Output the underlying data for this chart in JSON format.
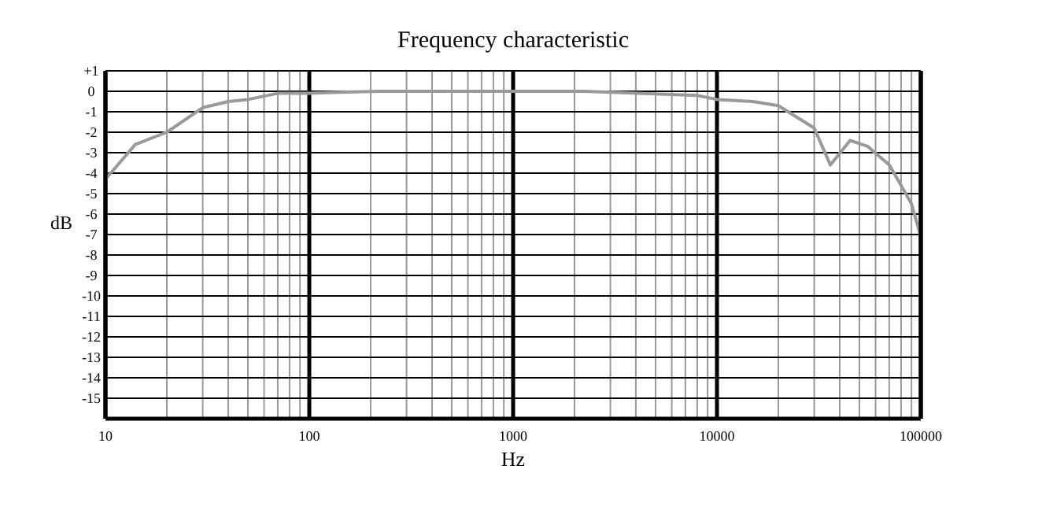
{
  "chart_data": {
    "type": "line",
    "title": "Frequency characteristic",
    "xlabel": "Hz",
    "ylabel": "dB",
    "log": "x",
    "grid": true,
    "xlim": [
      10,
      100000
    ],
    "ylim": [
      -16,
      1
    ],
    "xticks": [
      10,
      {
        "value": 20,
        "label": null
      },
      {
        "value": 30,
        "label": null
      },
      {
        "value": 40,
        "label": null
      },
      {
        "value": 50,
        "label": null
      },
      {
        "value": 60,
        "label": null
      },
      {
        "value": 70,
        "label": null
      },
      {
        "value": 80,
        "label": null
      },
      {
        "value": 90,
        "label": null
      },
      100,
      {
        "value": 200,
        "label": null
      },
      {
        "value": 300,
        "label": null
      },
      {
        "value": 400,
        "label": null
      },
      {
        "value": 500,
        "label": null
      },
      {
        "value": 600,
        "label": null
      },
      {
        "value": 700,
        "label": null
      },
      {
        "value": 800,
        "label": null
      },
      {
        "value": 900,
        "label": null
      },
      1000,
      {
        "value": 2000,
        "label": null
      },
      {
        "value": 3000,
        "label": null
      },
      {
        "value": 4000,
        "label": null
      },
      {
        "value": 5000,
        "label": null
      },
      {
        "value": 6000,
        "label": null
      },
      {
        "value": 7000,
        "label": null
      },
      {
        "value": 8000,
        "label": null
      },
      {
        "value": 9000,
        "label": null
      },
      10000,
      {
        "value": 20000,
        "label": null
      },
      {
        "value": 30000,
        "label": null
      },
      {
        "value": 40000,
        "label": null
      },
      {
        "value": 50000,
        "label": null
      },
      {
        "value": 60000,
        "label": null
      },
      {
        "value": 70000,
        "label": null
      },
      {
        "value": 80000,
        "label": null
      },
      {
        "value": 90000,
        "label": null
      },
      100000
    ],
    "yticks": [
      {
        "value": 1,
        "label": "+1"
      },
      0,
      -1,
      -2,
      -3,
      -4,
      -5,
      -6,
      -7,
      -8,
      -9,
      -10,
      -11,
      -12,
      -13,
      -14,
      -15
    ],
    "x": [
      10,
      14,
      20,
      30,
      40,
      50,
      70,
      100,
      140,
      220,
      1000,
      2200,
      3000,
      8000,
      10000,
      15000,
      20000,
      30000,
      36000,
      45000,
      55000,
      70000,
      80000,
      90000,
      100000
    ],
    "series": [
      {
        "color": "#999999",
        "values": [
          -4.3,
          -2.6,
          -2.0,
          -0.8,
          -0.5,
          -0.4,
          -0.1,
          -0.1,
          -0.05,
          0,
          0,
          0,
          -0.05,
          -0.2,
          -0.4,
          -0.5,
          -0.7,
          -1.8,
          -3.6,
          -2.4,
          -2.7,
          -3.6,
          -4.6,
          -5.5,
          -7.1
        ]
      }
    ]
  }
}
